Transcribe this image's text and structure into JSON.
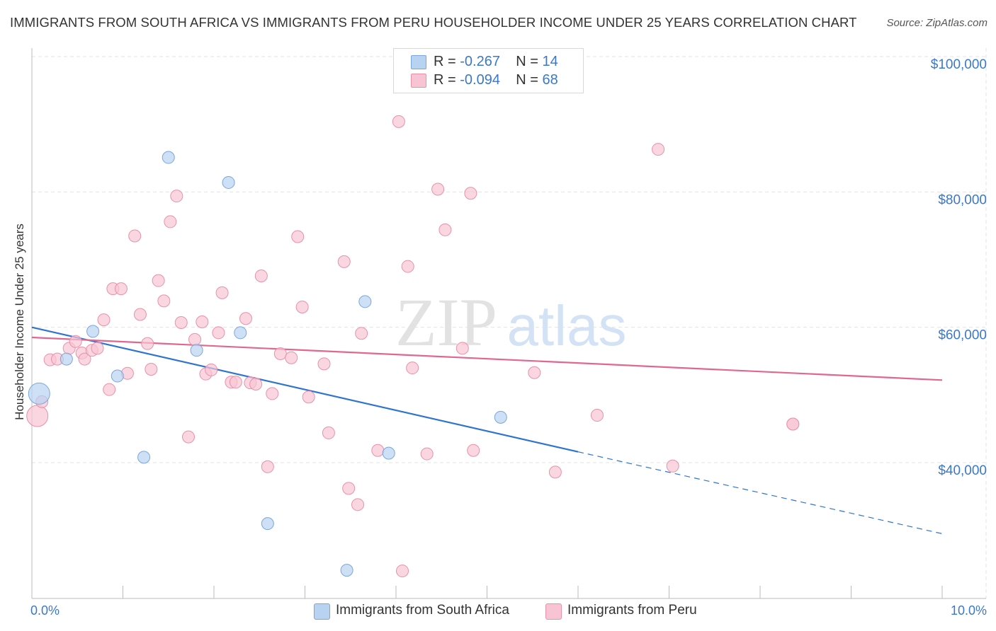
{
  "title": "IMMIGRANTS FROM SOUTH AFRICA VS IMMIGRANTS FROM PERU HOUSEHOLDER INCOME UNDER 25 YEARS CORRELATION CHART",
  "source": "Source: ZipAtlas.com",
  "legend_top": {
    "rows": [
      {
        "r_label": "R =",
        "r_value": "-0.267",
        "n_label": "N =",
        "n_value": "14"
      },
      {
        "r_label": "R =",
        "r_value": "-0.094",
        "n_label": "N =",
        "n_value": "68"
      }
    ]
  },
  "legend_bottom": {
    "south_africa": "Immigrants from South Africa",
    "peru": "Immigrants from Peru"
  },
  "colors": {
    "south_africa_fill": "#b8d3f2",
    "south_africa_stroke": "#7aa6dd",
    "south_africa_line": "#2e74d0",
    "peru_fill": "#f8c4d3",
    "peru_stroke": "#e891ab",
    "peru_line": "#e0678f",
    "axis_label": "#3a78cc"
  },
  "watermark": {
    "zip": "ZIP",
    "atlas": "atlas"
  },
  "chart_data": {
    "type": "scatter",
    "title": "IMMIGRANTS FROM SOUTH AFRICA VS IMMIGRANTS FROM PERU HOUSEHOLDER INCOME UNDER 25 YEARS CORRELATION CHART",
    "xlabel": "",
    "ylabel": "Householder Income Under 25 years",
    "xlim": [
      0,
      10
    ],
    "ylim": [
      22000,
      102000
    ],
    "x_tick_labels": [
      {
        "value": 0,
        "label": "0.0%"
      },
      {
        "value": 10,
        "label": "10.0%"
      }
    ],
    "y_ticks": [
      {
        "value": 40000,
        "label": "$40,000"
      },
      {
        "value": 60000,
        "label": "$60,000"
      },
      {
        "value": 80000,
        "label": "$80,000"
      },
      {
        "value": 100000,
        "label": "$100,000"
      }
    ],
    "grid": true,
    "legend_position": "top-center",
    "series": [
      {
        "name": "Immigrants from South Africa",
        "points": [
          {
            "x": 0.08,
            "y": 50200,
            "big": true
          },
          {
            "x": 0.38,
            "y": 55300
          },
          {
            "x": 0.67,
            "y": 59400
          },
          {
            "x": 0.94,
            "y": 52800
          },
          {
            "x": 1.23,
            "y": 40800
          },
          {
            "x": 1.5,
            "y": 85100
          },
          {
            "x": 1.81,
            "y": 56600
          },
          {
            "x": 2.16,
            "y": 81400
          },
          {
            "x": 2.29,
            "y": 59200
          },
          {
            "x": 2.59,
            "y": 31000
          },
          {
            "x": 3.46,
            "y": 24100
          },
          {
            "x": 3.66,
            "y": 63800
          },
          {
            "x": 3.92,
            "y": 41400
          },
          {
            "x": 5.15,
            "y": 46700
          }
        ],
        "trend": {
          "x0": 0,
          "y0": 60000,
          "x1": 6.0,
          "y1": 41600,
          "dash_to_x": 10,
          "dash_to_y": 29500
        }
      },
      {
        "name": "Immigrants from Peru",
        "points": [
          {
            "x": 0.06,
            "y": 46900,
            "big": true
          },
          {
            "x": 0.11,
            "y": 49000
          },
          {
            "x": 0.2,
            "y": 55200
          },
          {
            "x": 0.28,
            "y": 55300
          },
          {
            "x": 0.41,
            "y": 56900
          },
          {
            "x": 0.48,
            "y": 57900
          },
          {
            "x": 0.55,
            "y": 56200
          },
          {
            "x": 0.58,
            "y": 55300
          },
          {
            "x": 0.66,
            "y": 56600
          },
          {
            "x": 0.72,
            "y": 56900
          },
          {
            "x": 0.79,
            "y": 61100
          },
          {
            "x": 0.85,
            "y": 50800
          },
          {
            "x": 0.89,
            "y": 65700
          },
          {
            "x": 0.98,
            "y": 65700
          },
          {
            "x": 1.05,
            "y": 53200
          },
          {
            "x": 1.13,
            "y": 73500
          },
          {
            "x": 1.19,
            "y": 61900
          },
          {
            "x": 1.27,
            "y": 57600
          },
          {
            "x": 1.31,
            "y": 53800
          },
          {
            "x": 1.39,
            "y": 66900
          },
          {
            "x": 1.45,
            "y": 63900
          },
          {
            "x": 1.52,
            "y": 75600
          },
          {
            "x": 1.59,
            "y": 79400
          },
          {
            "x": 1.64,
            "y": 60700
          },
          {
            "x": 1.72,
            "y": 43800
          },
          {
            "x": 1.79,
            "y": 58200
          },
          {
            "x": 1.87,
            "y": 60800
          },
          {
            "x": 1.91,
            "y": 53100
          },
          {
            "x": 1.97,
            "y": 53700
          },
          {
            "x": 2.05,
            "y": 59200
          },
          {
            "x": 2.09,
            "y": 65100
          },
          {
            "x": 2.19,
            "y": 51900
          },
          {
            "x": 2.24,
            "y": 51900
          },
          {
            "x": 2.35,
            "y": 61300
          },
          {
            "x": 2.4,
            "y": 51800
          },
          {
            "x": 2.46,
            "y": 51600
          },
          {
            "x": 2.52,
            "y": 67600
          },
          {
            "x": 2.59,
            "y": 39400
          },
          {
            "x": 2.64,
            "y": 50200
          },
          {
            "x": 2.73,
            "y": 56100
          },
          {
            "x": 2.85,
            "y": 55500
          },
          {
            "x": 2.92,
            "y": 73400
          },
          {
            "x": 2.97,
            "y": 63000
          },
          {
            "x": 3.04,
            "y": 49700
          },
          {
            "x": 3.21,
            "y": 54600
          },
          {
            "x": 3.26,
            "y": 44400
          },
          {
            "x": 3.43,
            "y": 69700
          },
          {
            "x": 3.48,
            "y": 36200
          },
          {
            "x": 3.58,
            "y": 33800
          },
          {
            "x": 3.62,
            "y": 59100
          },
          {
            "x": 3.8,
            "y": 41800
          },
          {
            "x": 4.03,
            "y": 90400
          },
          {
            "x": 4.07,
            "y": 24000
          },
          {
            "x": 4.13,
            "y": 69000
          },
          {
            "x": 4.18,
            "y": 54000
          },
          {
            "x": 4.34,
            "y": 41300
          },
          {
            "x": 4.46,
            "y": 80400
          },
          {
            "x": 4.54,
            "y": 74400
          },
          {
            "x": 4.73,
            "y": 56900
          },
          {
            "x": 4.82,
            "y": 79800
          },
          {
            "x": 4.85,
            "y": 41800
          },
          {
            "x": 5.52,
            "y": 53300
          },
          {
            "x": 5.75,
            "y": 38600
          },
          {
            "x": 6.21,
            "y": 47000
          },
          {
            "x": 6.88,
            "y": 86300
          },
          {
            "x": 7.04,
            "y": 39500
          },
          {
            "x": 8.36,
            "y": 45700
          },
          {
            "x": 8.36,
            "y": 45700
          }
        ],
        "trend": {
          "x0": 0,
          "y0": 58500,
          "x1": 10,
          "y1": 52200
        }
      }
    ]
  }
}
